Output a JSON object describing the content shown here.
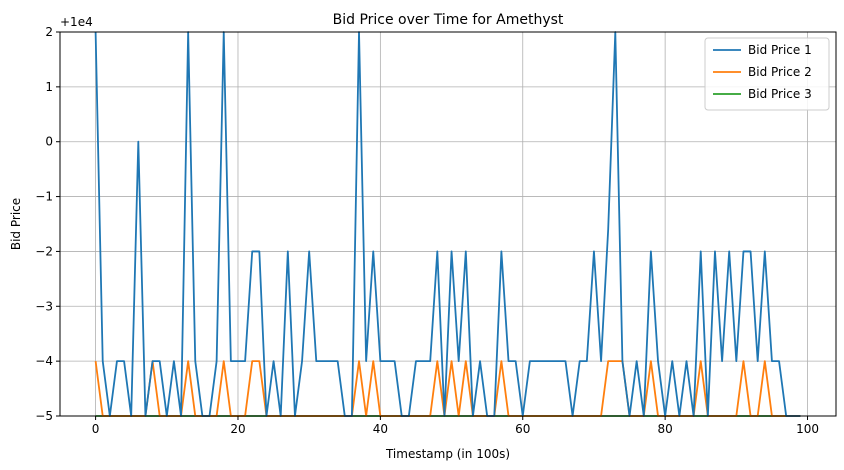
{
  "chart_data": {
    "type": "line",
    "title": "Bid Price over Time for Amethyst",
    "xlabel": "Timestamp (in 100s)",
    "ylabel": "Bid Price",
    "offset_label": "+1e4",
    "xlim": [
      -5,
      104
    ],
    "ylim": [
      -5,
      2
    ],
    "xticks": [
      0,
      20,
      40,
      60,
      80,
      100
    ],
    "yticks": [
      -5,
      -4,
      -3,
      -2,
      -1,
      0,
      1,
      2
    ],
    "grid": true,
    "legend_position": "top-right",
    "series": [
      {
        "name": "Bid Price 1",
        "color": "#1f77b4",
        "x": [
          0,
          1,
          2,
          3,
          4,
          5,
          6,
          7,
          8,
          9,
          10,
          11,
          12,
          13,
          14,
          15,
          16,
          17,
          18,
          19,
          20,
          21,
          22,
          23,
          24,
          25,
          26,
          27,
          28,
          29,
          30,
          31,
          32,
          33,
          34,
          35,
          36,
          37,
          38,
          39,
          40,
          41,
          42,
          43,
          44,
          45,
          46,
          47,
          48,
          49,
          50,
          51,
          52,
          53,
          54,
          55,
          56,
          57,
          58,
          59,
          60,
          61,
          62,
          63,
          64,
          65,
          66,
          67,
          68,
          69,
          70,
          71,
          72,
          73,
          74,
          75,
          76,
          77,
          78,
          79,
          80,
          81,
          82,
          83,
          84,
          85,
          86,
          87,
          88,
          89,
          90,
          91,
          92,
          93,
          94,
          95,
          96,
          97,
          98,
          99
        ],
        "values": [
          2,
          -4,
          -5,
          -4,
          -4,
          -5,
          0,
          -5,
          -4,
          -4,
          -5,
          -4,
          -5,
          2,
          -4,
          -5,
          -5,
          -4,
          2,
          -4,
          -4,
          -4,
          -2,
          -2,
          -5,
          -4,
          -5,
          -2,
          -5,
          -4,
          -2,
          -4,
          -4,
          -4,
          -4,
          -5,
          -5,
          2,
          -4,
          -2,
          -4,
          -4,
          -4,
          -5,
          -5,
          -4,
          -4,
          -4,
          -2,
          -5,
          -2,
          -4,
          -2,
          -5,
          -4,
          -5,
          -5,
          -2,
          -4,
          -4,
          -5,
          -4,
          -4,
          -4,
          -4,
          -4,
          -4,
          -5,
          -4,
          -4,
          -2,
          -4,
          -1.6,
          2,
          -4,
          -5,
          -4,
          -5,
          -2,
          -4,
          -5,
          -4,
          -5,
          -4,
          -5,
          -2,
          -5,
          -2,
          -4,
          -2,
          -4,
          -2,
          -2,
          -4,
          -2,
          -4,
          -4,
          -5,
          -5,
          -5
        ]
      },
      {
        "name": "Bid Price 2",
        "color": "#ff7f0e",
        "x": [
          0,
          1,
          2,
          3,
          4,
          5,
          6,
          7,
          8,
          9,
          10,
          11,
          12,
          13,
          14,
          15,
          16,
          17,
          18,
          19,
          20,
          21,
          22,
          23,
          24,
          25,
          26,
          27,
          28,
          29,
          30,
          31,
          32,
          33,
          34,
          35,
          36,
          37,
          38,
          39,
          40,
          41,
          42,
          43,
          44,
          45,
          46,
          47,
          48,
          49,
          50,
          51,
          52,
          53,
          54,
          55,
          56,
          57,
          58,
          59,
          60,
          61,
          62,
          63,
          64,
          65,
          66,
          67,
          68,
          69,
          70,
          71,
          72,
          73,
          74,
          75,
          76,
          77,
          78,
          79,
          80,
          81,
          82,
          83,
          84,
          85,
          86,
          87,
          88,
          89,
          90,
          91,
          92,
          93,
          94,
          95,
          96,
          97,
          98,
          99
        ],
        "values": [
          -4,
          -5,
          -5,
          -5,
          -5,
          -5,
          -5,
          -5,
          -4,
          -5,
          -5,
          -5,
          -5,
          -4,
          -5,
          -5,
          -5,
          -5,
          -4,
          -5,
          -5,
          -5,
          -4,
          -4,
          -5,
          -5,
          -5,
          -5,
          -5,
          -5,
          -5,
          -5,
          -5,
          -5,
          -5,
          -5,
          -5,
          -4,
          -5,
          -4,
          -5,
          -5,
          -5,
          -5,
          -5,
          -5,
          -5,
          -5,
          -4,
          -5,
          -4,
          -5,
          -4,
          -5,
          -5,
          -5,
          -5,
          -4,
          -5,
          -5,
          -5,
          -5,
          -5,
          -5,
          -5,
          -5,
          -5,
          -5,
          -5,
          -5,
          -5,
          -5,
          -4,
          -4,
          -4,
          -5,
          -5,
          -5,
          -4,
          -5,
          -5,
          -5,
          -5,
          -5,
          -5,
          -4,
          -5,
          -5,
          -5,
          -5,
          -5,
          -4,
          -5,
          -5,
          -4,
          -5,
          -5,
          -5,
          -5,
          -5
        ]
      },
      {
        "name": "Bid Price 3",
        "color": "#2ca02c",
        "x": [
          0,
          1,
          2,
          3,
          4,
          5,
          6,
          7,
          8,
          9,
          10,
          11,
          12,
          13,
          14,
          15,
          16,
          17,
          18,
          19,
          20,
          21,
          22,
          23,
          24,
          25,
          26,
          27,
          28,
          29,
          30,
          31,
          32,
          33,
          34,
          35,
          36,
          37,
          38,
          39,
          40,
          41,
          42,
          43,
          44,
          45,
          46,
          47,
          48,
          49,
          50,
          51,
          52,
          53,
          54,
          55,
          56,
          57,
          58,
          59,
          60,
          61,
          62,
          63,
          64,
          65,
          66,
          67,
          68,
          69,
          70,
          71,
          72,
          73,
          74,
          75,
          76,
          77,
          78,
          79,
          80,
          81,
          82,
          83,
          84,
          85,
          86,
          87,
          88,
          89,
          90,
          91,
          92,
          93,
          94,
          95,
          96,
          97,
          98,
          99
        ],
        "values": [
          -5,
          -5,
          -5,
          -5,
          -5,
          -5,
          -5,
          -5,
          -5,
          -5,
          -5,
          -5,
          -5,
          -5,
          -5,
          -5,
          -5,
          -5,
          -5,
          -5,
          -5,
          -5,
          -5,
          -5,
          -5,
          -5,
          -5,
          -5,
          -5,
          -5,
          -5,
          -5,
          -5,
          -5,
          -5,
          -5,
          -5,
          -5,
          -5,
          -5,
          -5,
          -5,
          -5,
          -5,
          -5,
          -5,
          -5,
          -5,
          -5,
          -5,
          -5,
          -5,
          -5,
          -5,
          -5,
          -5,
          -5,
          -5,
          -5,
          -5,
          -5,
          -5,
          -5,
          -5,
          -5,
          -5,
          -5,
          -5,
          -5,
          -5,
          -5,
          -5,
          -5,
          -5,
          -5,
          -5,
          -5,
          -5,
          -5,
          -5,
          -5,
          -5,
          -5,
          -5,
          -5,
          -5,
          -5,
          -5,
          -5,
          -5,
          -5,
          -5,
          -5,
          -5,
          -5,
          -5,
          -5,
          -5,
          -5,
          -5
        ]
      }
    ]
  }
}
